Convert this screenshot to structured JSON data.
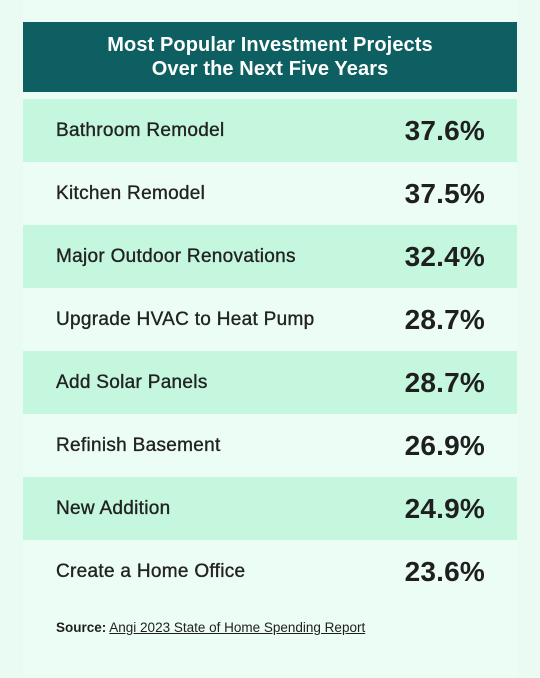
{
  "title_line1": "Most Popular Investment Projects",
  "title_line2": "Over the Next Five Years",
  "colors": {
    "header": "#0e5f61",
    "shaded_row": "#c4f7de",
    "background": "#e9fbf3"
  },
  "chart_data": {
    "type": "table",
    "title": "Most Popular Investment Projects Over the Next Five Years",
    "categories": [
      "Bathroom Remodel",
      "Kitchen Remodel",
      "Major Outdoor Renovations",
      "Upgrade HVAC to Heat Pump",
      "Add Solar Panels",
      "Refinish Basement",
      "New Addition",
      "Create a Home Office"
    ],
    "values": [
      37.6,
      37.5,
      32.4,
      28.7,
      28.7,
      26.9,
      24.9,
      23.6
    ],
    "value_labels": [
      "37.6%",
      "37.5%",
      "32.4%",
      "28.7%",
      "28.7%",
      "26.9%",
      "24.9%",
      "23.6%"
    ],
    "unit": "%"
  },
  "source": {
    "label": "Source:",
    "text": "Angi 2023 State of Home Spending Report"
  }
}
